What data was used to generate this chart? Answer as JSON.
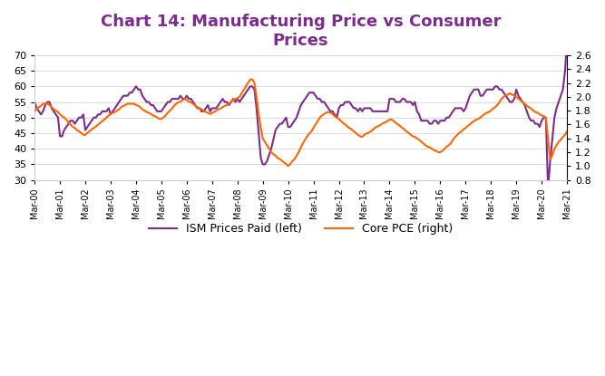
{
  "title": "Chart 14: Manufacturing Price vs Consumer\nPrices",
  "title_color": "#7B2D8B",
  "title_fontsize": 13,
  "title_fontweight": "bold",
  "ism_color": "#7B2D8B",
  "pce_color": "#FF6600",
  "ism_label": "ISM Prices Paid (left)",
  "pce_label": "Core PCE (right)",
  "ylim_left": [
    30,
    70
  ],
  "ylim_right": [
    0.8,
    2.6
  ],
  "yticks_left": [
    30,
    35,
    40,
    45,
    50,
    55,
    60,
    65,
    70
  ],
  "yticks_right": [
    0.8,
    1.0,
    1.2,
    1.4,
    1.6,
    1.8,
    2.0,
    2.2,
    2.4,
    2.6
  ],
  "background_color": "#ffffff",
  "grid_color": "#cccccc",
  "line_width": 1.5,
  "ism_data": [
    55,
    53,
    52,
    51,
    52,
    54,
    55,
    55,
    53,
    52,
    51,
    50,
    44,
    44,
    46,
    47,
    48,
    49,
    49,
    48,
    49,
    50,
    50,
    51,
    46,
    47,
    48,
    49,
    50,
    50,
    51,
    51,
    52,
    52,
    52,
    53,
    51,
    52,
    53,
    54,
    55,
    56,
    57,
    57,
    57,
    58,
    58,
    59,
    60,
    59,
    59,
    57,
    56,
    55,
    55,
    54,
    54,
    53,
    52,
    52,
    52,
    53,
    54,
    55,
    55,
    56,
    56,
    56,
    56,
    57,
    56,
    56,
    57,
    56,
    56,
    55,
    54,
    53,
    53,
    52,
    52,
    53,
    54,
    52,
    53,
    53,
    53,
    54,
    55,
    56,
    55,
    55,
    54,
    55,
    56,
    55,
    56,
    55,
    56,
    57,
    58,
    59,
    60,
    60,
    59,
    53,
    45,
    37,
    35,
    35,
    36,
    38,
    40,
    43,
    46,
    47,
    48,
    48,
    49,
    50,
    47,
    47,
    48,
    49,
    50,
    52,
    54,
    55,
    56,
    57,
    58,
    58,
    58,
    57,
    56,
    56,
    55,
    55,
    54,
    53,
    52,
    52,
    51,
    50,
    53,
    54,
    54,
    55,
    55,
    55,
    54,
    53,
    53,
    52,
    53,
    52,
    53,
    53,
    53,
    53,
    52,
    52,
    52,
    52,
    52,
    52,
    52,
    52,
    56,
    56,
    56,
    55,
    55,
    55,
    56,
    56,
    55,
    55,
    55,
    54,
    55,
    52,
    51,
    49,
    49,
    49,
    49,
    48,
    48,
    49,
    49,
    48,
    49,
    49,
    49,
    50,
    50,
    51,
    52,
    53,
    53,
    53,
    53,
    52,
    53,
    55,
    57,
    58,
    59,
    59,
    59,
    57,
    57,
    58,
    59,
    59,
    59,
    59,
    60,
    60,
    59,
    59,
    58,
    57,
    56,
    55,
    55,
    56,
    59,
    57,
    56,
    55,
    54,
    52,
    50,
    49,
    49,
    48,
    48,
    47,
    49,
    50,
    50,
    27,
    36,
    43,
    50,
    53,
    55,
    57,
    59,
    65,
    75
  ],
  "pce_data": [
    1.8,
    1.82,
    1.85,
    1.87,
    1.9,
    1.9,
    1.9,
    1.88,
    1.85,
    1.82,
    1.8,
    1.78,
    1.75,
    1.72,
    1.7,
    1.67,
    1.63,
    1.6,
    1.57,
    1.55,
    1.52,
    1.5,
    1.48,
    1.45,
    1.45,
    1.48,
    1.5,
    1.53,
    1.55,
    1.57,
    1.6,
    1.62,
    1.65,
    1.67,
    1.7,
    1.73,
    1.75,
    1.77,
    1.78,
    1.8,
    1.82,
    1.85,
    1.87,
    1.88,
    1.9,
    1.9,
    1.9,
    1.9,
    1.88,
    1.87,
    1.85,
    1.82,
    1.8,
    1.78,
    1.77,
    1.75,
    1.73,
    1.72,
    1.7,
    1.68,
    1.68,
    1.7,
    1.73,
    1.77,
    1.8,
    1.83,
    1.87,
    1.9,
    1.92,
    1.93,
    1.95,
    1.97,
    1.95,
    1.93,
    1.92,
    1.9,
    1.87,
    1.85,
    1.83,
    1.82,
    1.8,
    1.78,
    1.77,
    1.75,
    1.77,
    1.78,
    1.8,
    1.82,
    1.83,
    1.85,
    1.87,
    1.88,
    1.9,
    1.93,
    1.95,
    1.97,
    1.98,
    2.0,
    2.05,
    2.1,
    2.15,
    2.2,
    2.25,
    2.25,
    2.2,
    2.0,
    1.75,
    1.55,
    1.4,
    1.35,
    1.3,
    1.25,
    1.2,
    1.17,
    1.15,
    1.12,
    1.1,
    1.08,
    1.05,
    1.03,
    1.0,
    1.03,
    1.07,
    1.1,
    1.15,
    1.2,
    1.27,
    1.33,
    1.38,
    1.43,
    1.47,
    1.5,
    1.55,
    1.6,
    1.65,
    1.7,
    1.73,
    1.75,
    1.77,
    1.78,
    1.77,
    1.75,
    1.72,
    1.7,
    1.68,
    1.65,
    1.62,
    1.6,
    1.57,
    1.55,
    1.53,
    1.5,
    1.48,
    1.45,
    1.43,
    1.42,
    1.45,
    1.47,
    1.48,
    1.5,
    1.52,
    1.55,
    1.57,
    1.58,
    1.6,
    1.62,
    1.63,
    1.65,
    1.67,
    1.67,
    1.65,
    1.62,
    1.6,
    1.58,
    1.55,
    1.53,
    1.5,
    1.48,
    1.45,
    1.43,
    1.42,
    1.4,
    1.38,
    1.35,
    1.33,
    1.3,
    1.28,
    1.27,
    1.25,
    1.23,
    1.22,
    1.2,
    1.2,
    1.22,
    1.25,
    1.28,
    1.3,
    1.33,
    1.38,
    1.42,
    1.45,
    1.48,
    1.5,
    1.53,
    1.55,
    1.58,
    1.6,
    1.63,
    1.65,
    1.67,
    1.68,
    1.7,
    1.73,
    1.75,
    1.77,
    1.78,
    1.8,
    1.83,
    1.85,
    1.88,
    1.92,
    1.97,
    2.0,
    2.02,
    2.03,
    2.05,
    2.03,
    2.02,
    2.0,
    1.97,
    1.95,
    1.92,
    1.9,
    1.87,
    1.85,
    1.83,
    1.8,
    1.78,
    1.77,
    1.75,
    1.73,
    1.72,
    1.7,
    1.4,
    1.1,
    1.15,
    1.25,
    1.3,
    1.35,
    1.38,
    1.42,
    1.45,
    1.5
  ]
}
